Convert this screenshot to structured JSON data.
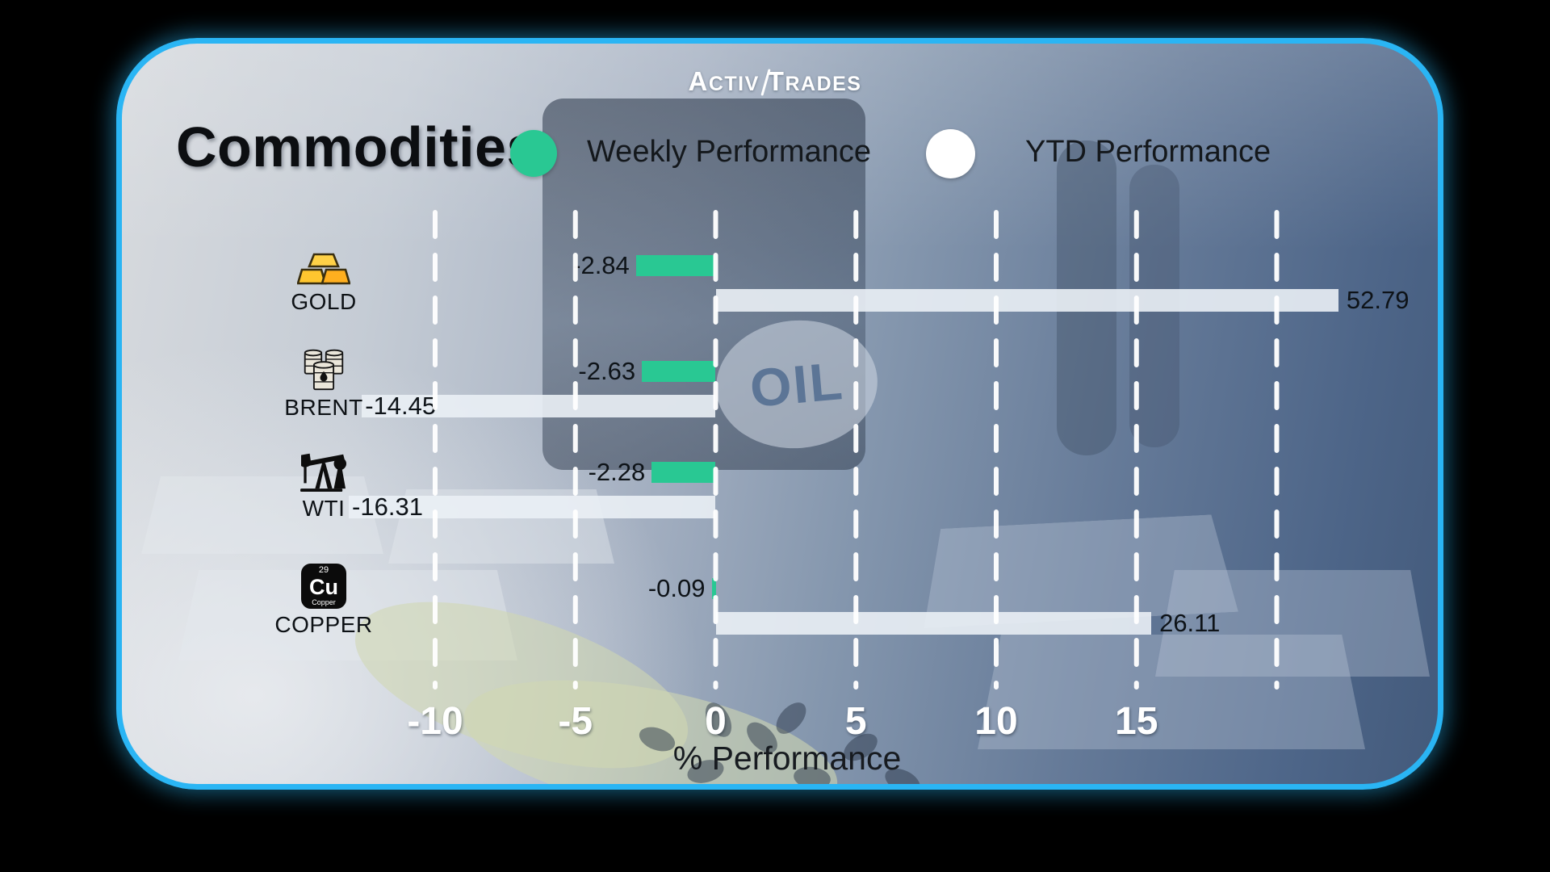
{
  "brand": {
    "name": "ActivTrades",
    "logo_part1": "Activ",
    "logo_part2": "Trades"
  },
  "header": {
    "title": "Commodities"
  },
  "legend": [
    {
      "label": "Weekly Performance",
      "color": "#29c893"
    },
    {
      "label": "YTD Performance",
      "color": "#ffffff"
    }
  ],
  "chart_data": {
    "type": "bar",
    "orientation": "horizontal",
    "title": "Commodities",
    "xlabel": "% Performance",
    "xlim": [
      -13,
      22
    ],
    "x_ticks": [
      -10,
      -5,
      0,
      5,
      10,
      15
    ],
    "x_gridlines": [
      -10,
      -5,
      0,
      5,
      10,
      15,
      20
    ],
    "grid": "dashed-vertical-white",
    "legend_position": "top",
    "categories": [
      "GOLD",
      "BRENT",
      "WTI",
      "COPPER"
    ],
    "icons": [
      "gold-bars-icon",
      "oil-barrels-icon",
      "oil-pump-jack-icon",
      "copper-element-icon"
    ],
    "series": [
      {
        "name": "Weekly Performance",
        "color": "#29c893",
        "values": [
          -2.84,
          -2.63,
          -2.28,
          -0.09
        ]
      },
      {
        "name": "YTD Performance",
        "color": "#e9eef4",
        "values": [
          52.79,
          -14.45,
          -16.31,
          26.11
        ]
      }
    ]
  },
  "copper_tile": {
    "number": "29",
    "symbol": "Cu",
    "name": "Copper"
  },
  "background": {
    "oil_barrel_label": "OIL"
  }
}
